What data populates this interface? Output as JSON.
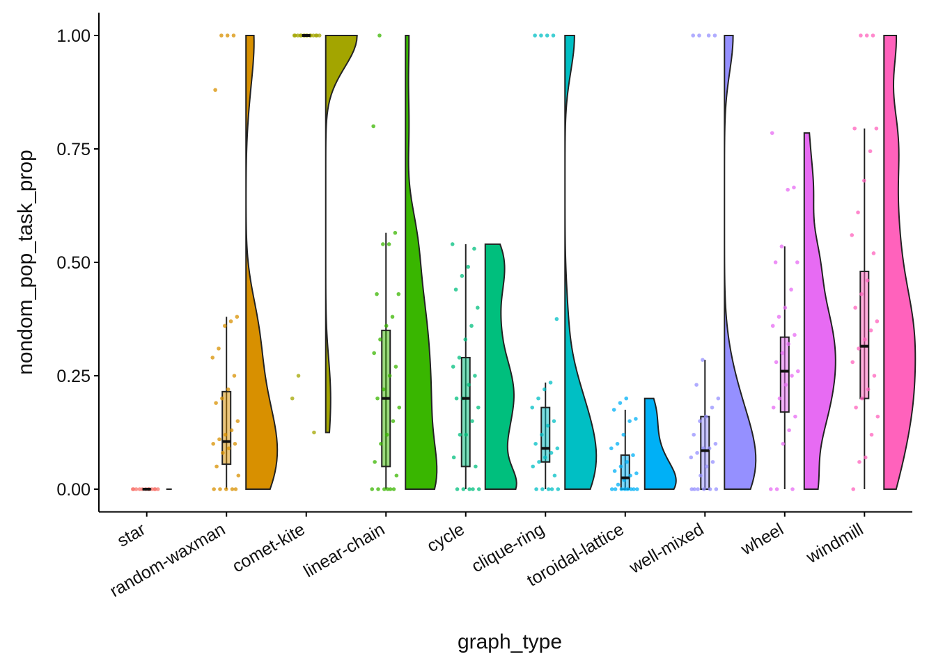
{
  "chart_data": {
    "type": "raincloud",
    "xlabel": "graph_type",
    "ylabel": "nondom_pop_task_prop",
    "categories": [
      "star",
      "random-waxman",
      "comet-kite",
      "linear-chain",
      "cycle",
      "clique-ring",
      "toroidal-lattice",
      "well-mixed",
      "wheel",
      "windmill"
    ],
    "colors": [
      "#F8766D",
      "#D89000",
      "#A3A500",
      "#39B600",
      "#00BF7D",
      "#00BFC4",
      "#00B0F6",
      "#9590FF",
      "#E76BF3",
      "#FF62BC"
    ],
    "boxes": [
      {
        "min": 0,
        "q1": 0,
        "median": 0,
        "q3": 0,
        "max": 0
      },
      {
        "min": 0,
        "q1": 0.055,
        "median": 0.105,
        "q3": 0.215,
        "max": 0.38
      },
      {
        "min": 1,
        "q1": 1,
        "median": 1,
        "q3": 1,
        "max": 1
      },
      {
        "min": 0,
        "q1": 0.05,
        "median": 0.2,
        "q3": 0.35,
        "max": 0.565
      },
      {
        "min": 0,
        "q1": 0.05,
        "median": 0.2,
        "q3": 0.29,
        "max": 0.54
      },
      {
        "min": 0,
        "q1": 0.06,
        "median": 0.09,
        "q3": 0.18,
        "max": 0.235
      },
      {
        "min": 0,
        "q1": 0,
        "median": 0.025,
        "q3": 0.075,
        "max": 0.175
      },
      {
        "min": 0,
        "q1": 0,
        "median": 0.085,
        "q3": 0.16,
        "max": 0.285
      },
      {
        "min": 0,
        "q1": 0.17,
        "median": 0.26,
        "q3": 0.335,
        "max": 0.535
      },
      {
        "min": 0,
        "q1": 0.2,
        "median": 0.315,
        "q3": 0.48,
        "max": 0.795
      }
    ],
    "points": [
      [
        0,
        0,
        0,
        0,
        0,
        0,
        0,
        0,
        0,
        0,
        0,
        0
      ],
      [
        1,
        1,
        1,
        0.88,
        0.38,
        0.37,
        0.36,
        0.31,
        0.29,
        0.25,
        0.22,
        0.2,
        0.19,
        0.15,
        0.13,
        0.12,
        0.11,
        0.1,
        0.1,
        0.09,
        0.08,
        0.05,
        0.03,
        0,
        0,
        0,
        0,
        0
      ],
      [
        1,
        1,
        1,
        1,
        1,
        1,
        1,
        1,
        1,
        1,
        1,
        1,
        1,
        1,
        1,
        0.25,
        0.2,
        0.125
      ],
      [
        1,
        0.8,
        0.565,
        0.54,
        0.54,
        0.43,
        0.43,
        0.38,
        0.36,
        0.33,
        0.3,
        0.27,
        0.25,
        0.22,
        0.2,
        0.18,
        0.15,
        0.12,
        0.1,
        0.06,
        0.03,
        0,
        0,
        0,
        0,
        0,
        0
      ],
      [
        0.54,
        0.53,
        0.49,
        0.47,
        0.44,
        0.4,
        0.36,
        0.33,
        0.29,
        0.27,
        0.25,
        0.23,
        0.2,
        0.2,
        0.18,
        0.15,
        0.12,
        0.12,
        0.07,
        0.05,
        0,
        0,
        0,
        0,
        0
      ],
      [
        1,
        1,
        1,
        1,
        0.375,
        0.235,
        0.22,
        0.2,
        0.18,
        0.15,
        0.14,
        0.12,
        0.1,
        0.09,
        0.08,
        0.07,
        0.06,
        0.05,
        0.03,
        0,
        0,
        0,
        0,
        0
      ],
      [
        0.2,
        0.19,
        0.175,
        0.155,
        0.15,
        0.12,
        0.1,
        0.09,
        0.075,
        0.06,
        0.05,
        0.04,
        0.035,
        0.03,
        0.02,
        0.01,
        0,
        0,
        0,
        0,
        0,
        0,
        0,
        0
      ],
      [
        1,
        1,
        1,
        1,
        0.285,
        0.23,
        0.2,
        0.18,
        0.16,
        0.15,
        0.12,
        0.1,
        0.09,
        0.09,
        0.08,
        0.07,
        0.06,
        0.05,
        0.03,
        0,
        0,
        0,
        0,
        0,
        0
      ],
      [
        0.785,
        0.665,
        0.66,
        0.535,
        0.5,
        0.5,
        0.44,
        0.4,
        0.38,
        0.36,
        0.34,
        0.32,
        0.3,
        0.28,
        0.26,
        0.25,
        0.23,
        0.2,
        0.18,
        0.16,
        0.13,
        0.1,
        0,
        0,
        0
      ],
      [
        1,
        1,
        1,
        0.795,
        0.795,
        0.745,
        0.68,
        0.61,
        0.56,
        0.52,
        0.46,
        0.43,
        0.4,
        0.37,
        0.35,
        0.33,
        0.31,
        0.28,
        0.25,
        0.22,
        0.2,
        0.18,
        0.16,
        0.12,
        0.07,
        0.06,
        0
      ]
    ],
    "ylim": [
      -0.05,
      1.05
    ],
    "yticks": [
      {
        "value": 0,
        "label": "0.00"
      },
      {
        "value": 0.25,
        "label": "0.25"
      },
      {
        "value": 0.5,
        "label": "0.50"
      },
      {
        "value": 0.75,
        "label": "0.75"
      },
      {
        "value": 1,
        "label": "1.00"
      }
    ]
  }
}
